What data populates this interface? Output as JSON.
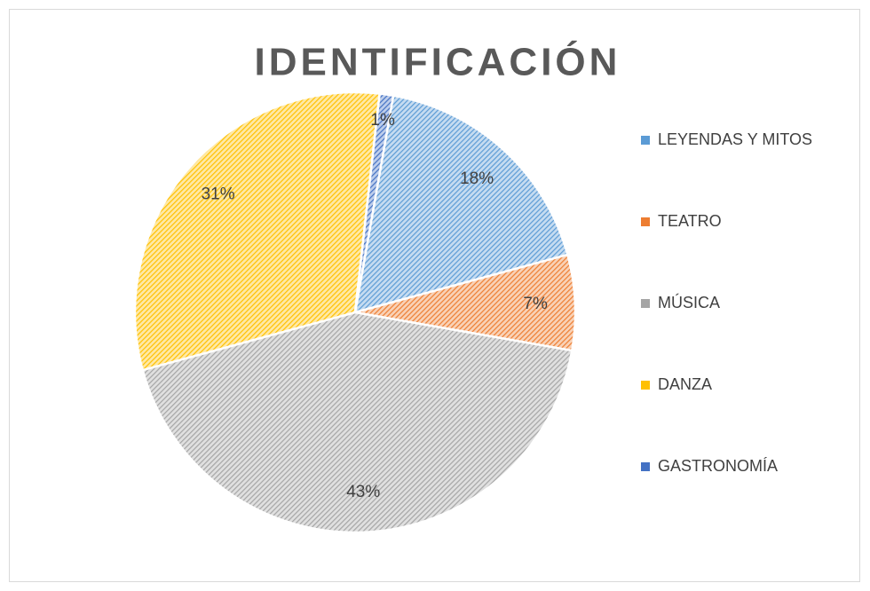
{
  "chart_data": {
    "type": "pie",
    "title": "IDENTIFICACIÓN",
    "categories": [
      "LEYENDAS Y MITOS",
      "TEATRO",
      "MÚSICA",
      "DANZA",
      "GASTRONOMÍA"
    ],
    "values": [
      18,
      7,
      43,
      31,
      1
    ],
    "value_labels": [
      "18%",
      "7%",
      "43%",
      "31%",
      "1%"
    ],
    "colors": [
      "#5b9bd5",
      "#ed7d31",
      "#a5a5a5",
      "#ffc000",
      "#4472c4"
    ],
    "legend": "right"
  }
}
